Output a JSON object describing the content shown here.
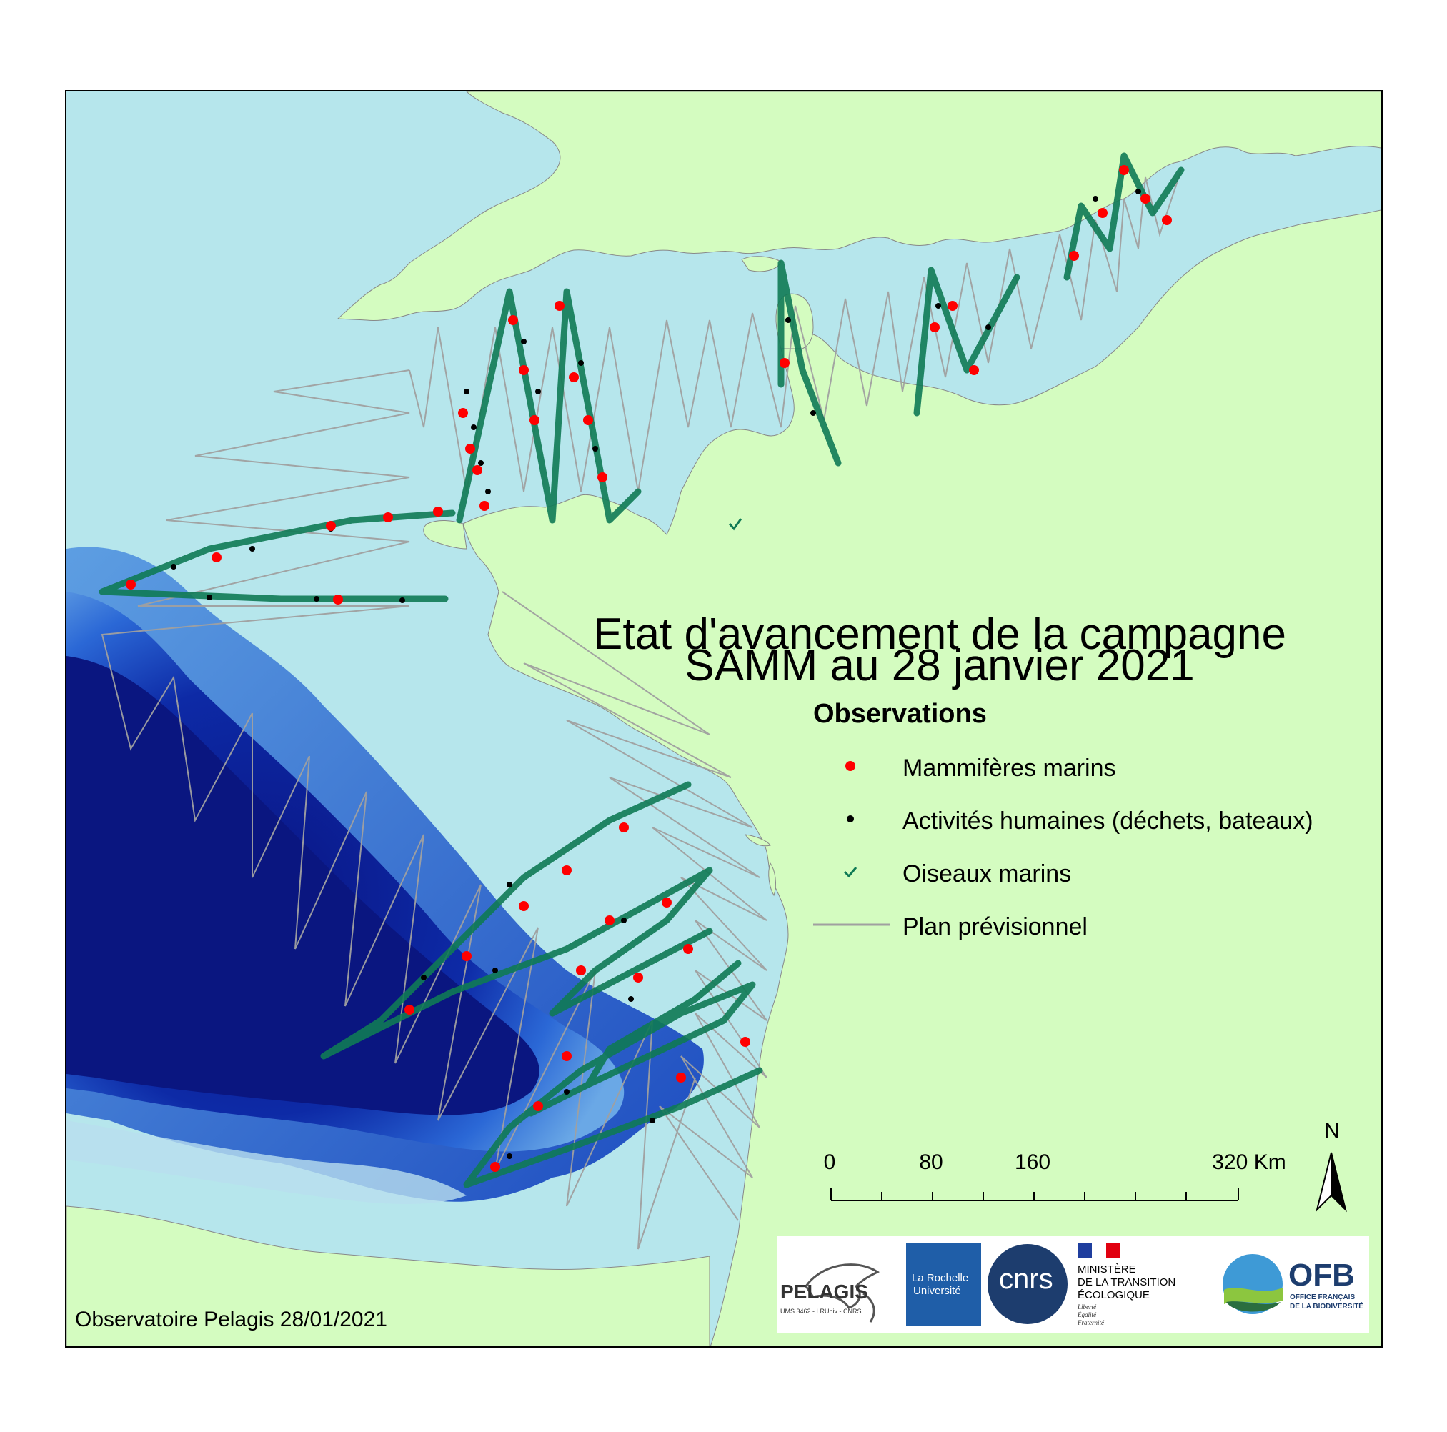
{
  "map": {
    "title_line1": "Etat d'avancement de la campagne",
    "title_line2": "SAMM au 28 janvier 2021",
    "legend": {
      "title": "Observations",
      "items": [
        {
          "label": "Mammifères marins",
          "symbol": "red-dot-icon",
          "color": "#ff0000"
        },
        {
          "label": "Activités humaines (déchets, bateaux)",
          "symbol": "black-dot-icon",
          "color": "#000000"
        },
        {
          "label": "Oiseaux marins",
          "symbol": "checkmark-icon",
          "color": "#0f7a55"
        },
        {
          "label": "Plan prévisionnel",
          "symbol": "grey-line-icon",
          "color": "#a0a0a0"
        }
      ]
    },
    "scale_bar": {
      "ticks": [
        "0",
        "80",
        "160",
        "320 Km"
      ]
    },
    "north_arrow": {
      "label": "N"
    },
    "credit": "Observatoire Pelagis 28/01/2021",
    "colors": {
      "land": "#d4fcc0",
      "shallow_sea": "#b6e6ec",
      "deep_sea": "#0a1a8f",
      "track_green": "#0f7a55",
      "plan_line": "#a0a0a0"
    },
    "logos": [
      {
        "name": "pelagis",
        "text": "PELAGIS",
        "subtext": "UMS 3462 - LRUniv - CNRS"
      },
      {
        "name": "la-rochelle",
        "text1": "La Rochelle",
        "text2": "Université"
      },
      {
        "name": "cnrs",
        "text": "cnrs"
      },
      {
        "name": "ministere",
        "text1": "MINISTÈRE",
        "text2": "DE LA TRANSITION",
        "text3": "ÉCOLOGIQUE",
        "motto1": "Liberté",
        "motto2": "Égalité",
        "motto3": "Fraternité"
      },
      {
        "name": "ofb",
        "text": "OFB",
        "sub1": "OFFICE FRANÇAIS",
        "sub2": "DE LA BIODIVERSITÉ"
      }
    ]
  }
}
